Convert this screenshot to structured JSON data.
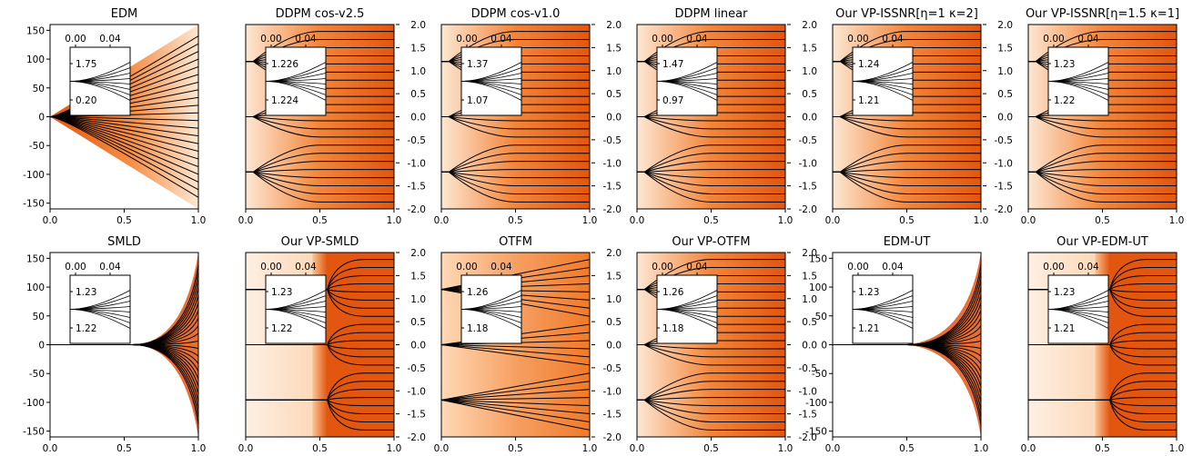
{
  "figure": {
    "description_free": true
  },
  "colors": {
    "light": "#fde7d3",
    "dark": "#e2560f",
    "traj": "#000000",
    "frame": "#000000"
  },
  "chart_data": [
    {
      "type": "line",
      "title": "EDM",
      "style": "diverge",
      "flank": "left-numeric",
      "xlim": [
        0,
        1
      ],
      "xticks": [
        "0.0",
        "0.5",
        "1.0"
      ],
      "ylim": [
        -160,
        160
      ],
      "yticks": [
        "150",
        "100",
        "50",
        "0",
        "-50",
        "-100",
        "-150"
      ],
      "inset": {
        "xticks": [
          "0.00",
          "0.04"
        ],
        "yticks": [
          "1.75",
          "0.20"
        ]
      }
    },
    {
      "type": "line",
      "title": "DDPM cos-v2.5",
      "style": "converge",
      "flank": "right-scale",
      "xlim": [
        0,
        1
      ],
      "xticks": [
        "0.0",
        "0.5",
        "1.0"
      ],
      "ylim": [
        -2.0,
        2.0
      ],
      "yticks": [
        "2.0",
        "1.5",
        "1.0",
        "0.5",
        "0.0",
        "-0.5",
        "-1.0",
        "-1.5",
        "-2.0"
      ],
      "inset": {
        "xticks": [
          "0.00",
          "0.04"
        ],
        "yticks": [
          "1.226",
          "1.224"
        ]
      }
    },
    {
      "type": "line",
      "title": "DDPM cos-v1.0",
      "style": "converge",
      "flank": "right-scale",
      "xlim": [
        0,
        1
      ],
      "xticks": [
        "0.0",
        "0.5",
        "1.0"
      ],
      "ylim": [
        -2.0,
        2.0
      ],
      "yticks": [
        "2.0",
        "1.5",
        "1.0",
        "0.5",
        "0.0",
        "-0.5",
        "-1.0",
        "-1.5",
        "-2.0"
      ],
      "inset": {
        "xticks": [
          "0.00",
          "0.04"
        ],
        "yticks": [
          "1.37",
          "1.07"
        ]
      }
    },
    {
      "type": "line",
      "title": "DDPM linear",
      "style": "converge",
      "flank": "right-scale",
      "xlim": [
        0,
        1
      ],
      "xticks": [
        "0.0",
        "0.5",
        "1.0"
      ],
      "ylim": [
        -2.0,
        2.0
      ],
      "yticks": [
        "2.0",
        "1.5",
        "1.0",
        "0.5",
        "0.0",
        "-0.5",
        "-1.0",
        "-1.5",
        "-2.0"
      ],
      "inset": {
        "xticks": [
          "0.00",
          "0.04"
        ],
        "yticks": [
          "1.47",
          "0.97"
        ]
      }
    },
    {
      "type": "line",
      "title": "Our VP-ISSNR[η=1 κ=2]",
      "style": "converge",
      "flank": "right-scale",
      "xlim": [
        0,
        1
      ],
      "xticks": [
        "0.0",
        "0.5",
        "1.0"
      ],
      "ylim": [
        -2.0,
        2.0
      ],
      "yticks": [
        "2.0",
        "1.5",
        "1.0",
        "0.5",
        "0.0",
        "-0.5",
        "-1.0",
        "-1.5",
        "-2.0"
      ],
      "inset": {
        "xticks": [
          "0.00",
          "0.04"
        ],
        "yticks": [
          "1.24",
          "1.21"
        ]
      }
    },
    {
      "type": "line",
      "title": "Our VP-ISSNR[η=1.5 κ=1]",
      "style": "converge",
      "flank": "none",
      "xlim": [
        0,
        1
      ],
      "xticks": [
        "0.0",
        "0.5",
        "1.0"
      ],
      "ylim": [
        -2.0,
        2.0
      ],
      "yticks": [],
      "inset": {
        "xticks": [
          "0.00",
          "0.04"
        ],
        "yticks": [
          "1.23",
          "1.22"
        ]
      }
    },
    {
      "type": "line",
      "title": "SMLD",
      "style": "smld",
      "flank": "left-numeric",
      "xlim": [
        0,
        1
      ],
      "xticks": [
        "0.0",
        "0.5",
        "1.0"
      ],
      "ylim": [
        -160,
        160
      ],
      "yticks": [
        "150",
        "100",
        "50",
        "0",
        "-50",
        "-100",
        "-150"
      ],
      "inset": {
        "xticks": [
          "0.00",
          "0.04"
        ],
        "yticks": [
          "1.23",
          "1.22"
        ]
      }
    },
    {
      "type": "line",
      "title": "Our VP-SMLD",
      "style": "converge-late",
      "flank": "right-scale",
      "xlim": [
        0,
        1
      ],
      "xticks": [
        "0.0",
        "0.5",
        "1.0"
      ],
      "ylim": [
        -2.0,
        2.0
      ],
      "yticks": [
        "2.0",
        "1.5",
        "1.0",
        "0.5",
        "0.0",
        "-0.5",
        "-1.0",
        "-1.5",
        "-2.0"
      ],
      "inset": {
        "xticks": [
          "0.00",
          "0.04"
        ],
        "yticks": [
          "1.23",
          "1.22"
        ]
      }
    },
    {
      "type": "line",
      "title": "OTFM",
      "style": "linear",
      "flank": "right-scale",
      "xlim": [
        0,
        1
      ],
      "xticks": [
        "0.0",
        "0.5",
        "1.0"
      ],
      "ylim": [
        -2.0,
        2.0
      ],
      "yticks": [
        "2.0",
        "1.5",
        "1.0",
        "0.5",
        "0.0",
        "-0.5",
        "-1.0",
        "-1.5",
        "-2.0"
      ],
      "inset": {
        "xticks": [
          "0.00",
          "0.04"
        ],
        "yticks": [
          "1.26",
          "1.18"
        ]
      }
    },
    {
      "type": "line",
      "title": "Our VP-OTFM",
      "style": "converge",
      "flank": "right-scale",
      "xlim": [
        0,
        1
      ],
      "xticks": [
        "0.0",
        "0.5",
        "1.0"
      ],
      "ylim": [
        -2.0,
        2.0
      ],
      "yticks": [
        "2.0",
        "1.5",
        "1.0",
        "0.5",
        "0.0",
        "-0.5",
        "-1.0",
        "-1.5",
        "-2.0"
      ],
      "inset": {
        "xticks": [
          "0.00",
          "0.04"
        ],
        "yticks": [
          "1.26",
          "1.18"
        ]
      }
    },
    {
      "type": "line",
      "title": "EDM-UT",
      "style": "edmut",
      "flank": "left-numeric",
      "xlim": [
        0,
        1
      ],
      "xticks": [
        "0.0",
        "0.5",
        "1.0"
      ],
      "ylim": [
        -160,
        160
      ],
      "yticks": [
        "150",
        "100",
        "50",
        "0",
        "-50",
        "-100",
        "-150"
      ],
      "inset": {
        "xticks": [
          "0.00",
          "0.04"
        ],
        "yticks": [
          "1.23",
          "1.21"
        ]
      }
    },
    {
      "type": "line",
      "title": "Our VP-EDM-UT",
      "style": "converge-late",
      "flank": "none",
      "xlim": [
        0,
        1
      ],
      "xticks": [
        "0.0",
        "0.5",
        "1.0"
      ],
      "ylim": [
        -2.0,
        2.0
      ],
      "yticks": [],
      "inset": {
        "xticks": [
          "0.00",
          "0.04"
        ],
        "yticks": [
          "1.23",
          "1.21"
        ]
      }
    }
  ]
}
